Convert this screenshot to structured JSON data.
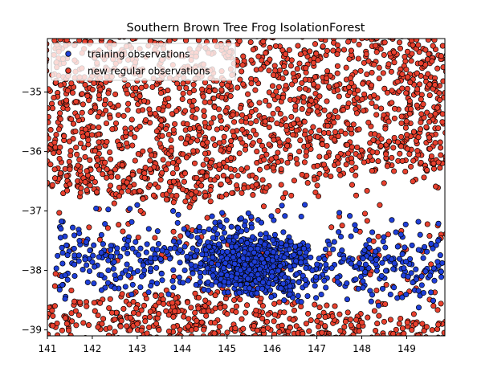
{
  "chart_data": {
    "type": "scatter",
    "title": "Southern Brown Tree Frog IsolationForest",
    "xlabel": "",
    "ylabel": "",
    "xlim": [
      141.0,
      149.85
    ],
    "ylim": [
      -39.1,
      -34.1
    ],
    "xticks": [
      141,
      142,
      143,
      144,
      145,
      146,
      147,
      148,
      149
    ],
    "yticks": [
      -35,
      -36,
      -37,
      -38,
      -39
    ],
    "xtick_labels": [
      "141",
      "142",
      "143",
      "144",
      "145",
      "146",
      "147",
      "148",
      "149"
    ],
    "ytick_labels": [
      "−35",
      "−36",
      "−37",
      "−38",
      "−39"
    ],
    "grid": false,
    "legend_position": "top-left",
    "series": [
      {
        "name": "training observations",
        "color": "#1f3fd9",
        "edge": "#000000",
        "sample_points": [
          [
            141.3,
            -37.3
          ],
          [
            141.6,
            -37.9
          ],
          [
            141.9,
            -38.2
          ],
          [
            142.2,
            -37.7
          ],
          [
            142.5,
            -38.3
          ],
          [
            142.8,
            -37.5
          ],
          [
            143.1,
            -38.1
          ],
          [
            143.4,
            -37.8
          ],
          [
            143.7,
            -38.4
          ],
          [
            143.9,
            -37.2
          ],
          [
            144.2,
            -37.9
          ],
          [
            144.4,
            -38.2
          ],
          [
            144.6,
            -37.6
          ],
          [
            144.8,
            -37.9
          ],
          [
            145.0,
            -37.8
          ],
          [
            145.1,
            -38.1
          ],
          [
            145.2,
            -37.6
          ],
          [
            145.3,
            -38.0
          ],
          [
            145.4,
            -37.9
          ],
          [
            145.5,
            -38.3
          ],
          [
            145.6,
            -37.7
          ],
          [
            145.8,
            -38.2
          ],
          [
            146.0,
            -38.1
          ],
          [
            146.2,
            -38.3
          ],
          [
            146.4,
            -38.4
          ],
          [
            146.6,
            -38.2
          ],
          [
            146.9,
            -38.0
          ],
          [
            147.2,
            -37.9
          ],
          [
            147.6,
            -37.8
          ],
          [
            148.2,
            -37.8
          ],
          [
            148.8,
            -37.6
          ],
          [
            149.3,
            -37.4
          ],
          [
            149.7,
            -37.5
          ],
          [
            143.0,
            -36.9
          ],
          [
            143.8,
            -37.0
          ]
        ]
      },
      {
        "name": "new regular observations",
        "color": "#e8402e",
        "edge": "#000000",
        "sample_points": [
          [
            141.2,
            -34.5
          ],
          [
            142.4,
            -35.2
          ],
          [
            143.5,
            -34.8
          ],
          [
            144.6,
            -35.6
          ],
          [
            145.7,
            -34.4
          ],
          [
            146.8,
            -35.9
          ],
          [
            147.9,
            -35.1
          ],
          [
            148.9,
            -34.7
          ],
          [
            149.6,
            -36.2
          ],
          [
            141.5,
            -36.3
          ],
          [
            142.7,
            -36.6
          ],
          [
            144.1,
            -36.1
          ],
          [
            146.3,
            -36.7
          ],
          [
            148.4,
            -36.9
          ],
          [
            141.4,
            -38.8
          ],
          [
            143.0,
            -38.9
          ],
          [
            145.2,
            -38.7
          ],
          [
            147.4,
            -38.6
          ],
          [
            149.2,
            -38.9
          ],
          [
            148.0,
            -38.2
          ]
        ]
      }
    ]
  }
}
